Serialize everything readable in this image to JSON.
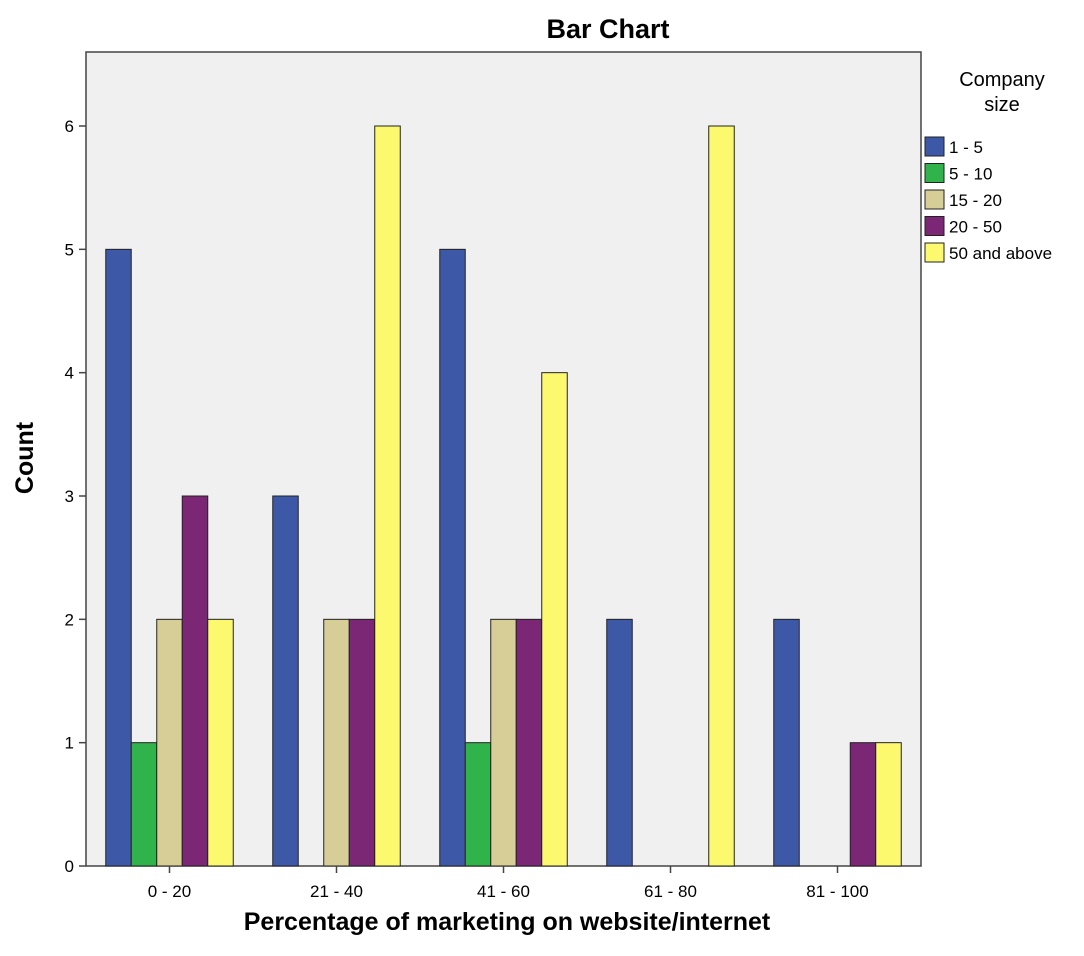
{
  "chart_data": {
    "type": "bar",
    "title": "Bar Chart",
    "xlabel": "Percentage of marketing on website/internet",
    "ylabel": "Count",
    "categories": [
      "0 - 20",
      "21 - 40",
      "41 - 60",
      "61 - 80",
      "81 - 100"
    ],
    "y_ticks": [
      "0",
      "1",
      "2",
      "3",
      "4",
      "5",
      "6"
    ],
    "ylim": [
      0,
      6.6
    ],
    "grid": false,
    "legend": {
      "title": [
        "Company",
        "size"
      ],
      "placement": "right"
    },
    "series": [
      {
        "name": "1 - 5",
        "color": "#3e58a8",
        "values": [
          5,
          3,
          5,
          2,
          2
        ]
      },
      {
        "name": "5 - 10",
        "color": "#2fb34a",
        "values": [
          1,
          0,
          1,
          0,
          0
        ]
      },
      {
        "name": "15 - 20",
        "color": "#d6cd97",
        "values": [
          2,
          2,
          2,
          0,
          0
        ]
      },
      {
        "name": "20 - 50",
        "color": "#7b2776",
        "values": [
          3,
          2,
          2,
          0,
          1
        ]
      },
      {
        "name": "50 and above",
        "color": "#fcf96e",
        "values": [
          2,
          6,
          4,
          6,
          1
        ]
      }
    ],
    "plot_background": "#f0f0f0"
  }
}
